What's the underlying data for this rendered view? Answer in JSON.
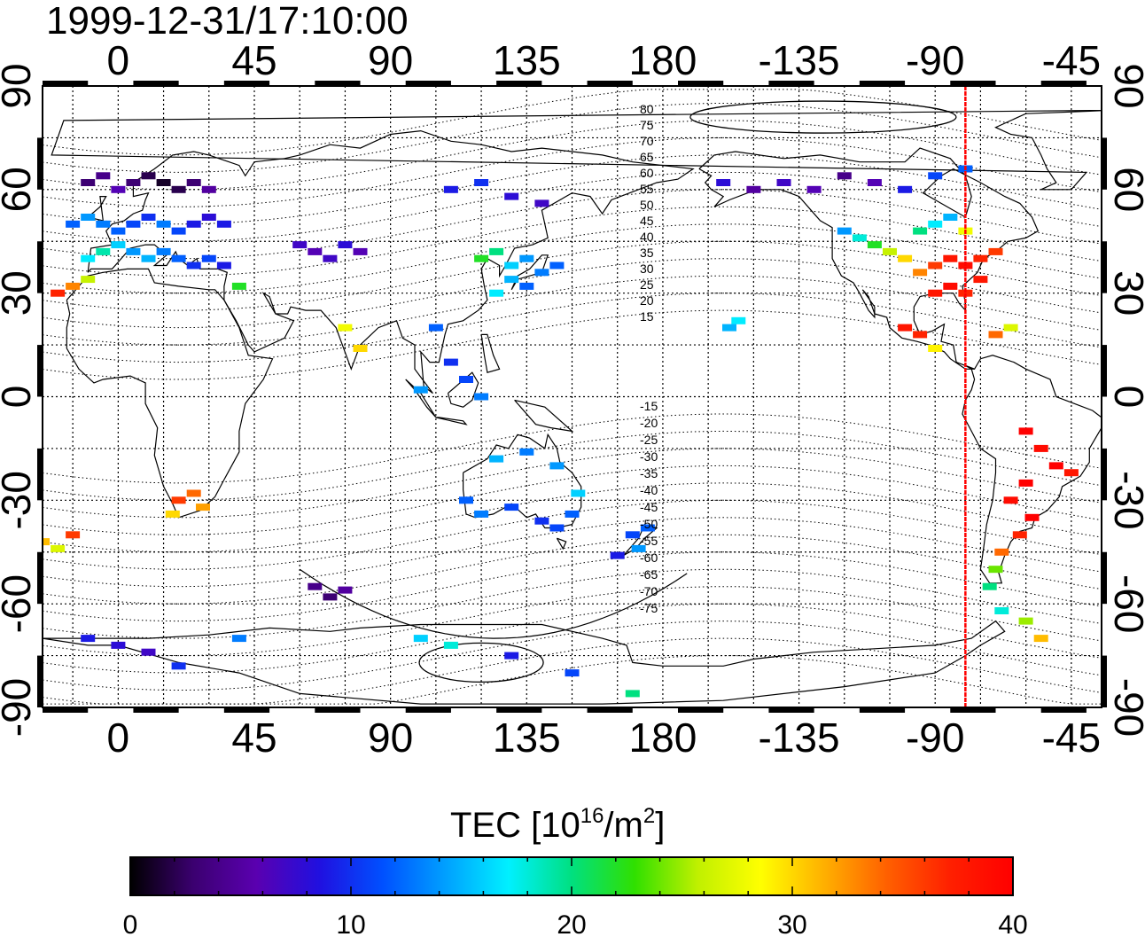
{
  "timestamp": "1999-12-31/17:10:00",
  "colorbar": {
    "title_main": "TEC  [10",
    "title_sup1": "16",
    "title_mid": "/m",
    "title_sup2": "2",
    "title_end": "]",
    "min": 0,
    "max": 40,
    "tick_labels": [
      "0",
      "10",
      "20",
      "30",
      "40"
    ],
    "colors": [
      "#000000",
      "#3b0070",
      "#5a00b0",
      "#2010e0",
      "#0050ff",
      "#00a0ff",
      "#00f0ff",
      "#00e080",
      "#30e000",
      "#c0f000",
      "#ffff00",
      "#ffb000",
      "#ff6000",
      "#ff2000",
      "#ff0000"
    ]
  },
  "axes": {
    "lon_ticks": [
      "0",
      "45",
      "90",
      "135",
      "180",
      "-135",
      "-90",
      "-45"
    ],
    "lat_ticks": [
      "90",
      "60",
      "30",
      "0",
      "-30",
      "-60",
      "-90"
    ]
  },
  "mlat_labels": [
    "80",
    "75",
    "70",
    "65",
    "60",
    "55",
    "50",
    "45",
    "40",
    "35",
    "30",
    "25",
    "20",
    "15",
    "-15",
    "-20",
    "-25",
    "-30",
    "-35",
    "-40",
    "-45",
    "-50",
    "-55",
    "-60",
    "-65",
    "-70",
    "-75"
  ],
  "chart_data": {
    "type": "heatmap",
    "title": "1999-12-31/17:10:00",
    "xlabel": "",
    "ylabel": "",
    "xlim": [
      -25,
      325
    ],
    "ylim": [
      -90,
      90
    ],
    "x_ticks": [
      "0",
      "45",
      "90",
      "135",
      "180",
      "-135",
      "-90",
      "-45"
    ],
    "y_ticks": [
      "90",
      "60",
      "30",
      "0",
      "-30",
      "-60",
      "-90"
    ],
    "colorbar_label": "TEC  [10^16/m^2]",
    "value_range": [
      0,
      40
    ],
    "grid": true,
    "marker_longitude": -80,
    "cells": [
      [
        -10,
        62,
        3
      ],
      [
        -5,
        64,
        4
      ],
      [
        0,
        60,
        6
      ],
      [
        5,
        62,
        3
      ],
      [
        10,
        64,
        2
      ],
      [
        15,
        62,
        1
      ],
      [
        20,
        60,
        2
      ],
      [
        25,
        62,
        3
      ],
      [
        30,
        60,
        5
      ],
      [
        -15,
        50,
        12
      ],
      [
        -10,
        52,
        14
      ],
      [
        -5,
        50,
        13
      ],
      [
        0,
        48,
        12
      ],
      [
        5,
        50,
        11
      ],
      [
        10,
        52,
        10
      ],
      [
        15,
        50,
        13
      ],
      [
        20,
        48,
        11
      ],
      [
        25,
        50,
        9
      ],
      [
        30,
        52,
        8
      ],
      [
        35,
        50,
        9
      ],
      [
        -10,
        40,
        17
      ],
      [
        -5,
        42,
        19
      ],
      [
        0,
        44,
        16
      ],
      [
        5,
        42,
        14
      ],
      [
        10,
        40,
        15
      ],
      [
        15,
        42,
        13
      ],
      [
        20,
        40,
        12
      ],
      [
        25,
        38,
        10
      ],
      [
        30,
        40,
        11
      ],
      [
        35,
        38,
        9
      ],
      [
        40,
        32,
        22
      ],
      [
        -20,
        30,
        37
      ],
      [
        -15,
        32,
        33
      ],
      [
        -10,
        34,
        26
      ],
      [
        60,
        44,
        7
      ],
      [
        65,
        42,
        6
      ],
      [
        70,
        40,
        7
      ],
      [
        75,
        44,
        8
      ],
      [
        80,
        42,
        6
      ],
      [
        120,
        40,
        22
      ],
      [
        125,
        42,
        20
      ],
      [
        130,
        38,
        16
      ],
      [
        135,
        40,
        14
      ],
      [
        140,
        36,
        13
      ],
      [
        145,
        38,
        12
      ],
      [
        130,
        34,
        15
      ],
      [
        135,
        32,
        12
      ],
      [
        125,
        30,
        17
      ],
      [
        110,
        60,
        9
      ],
      [
        120,
        62,
        10
      ],
      [
        130,
        58,
        8
      ],
      [
        140,
        56,
        7
      ],
      [
        105,
        20,
        12
      ],
      [
        110,
        10,
        10
      ],
      [
        115,
        5,
        11
      ],
      [
        120,
        0,
        13
      ],
      [
        100,
        2,
        14
      ],
      [
        80,
        14,
        30
      ],
      [
        75,
        20,
        28
      ],
      [
        -85,
        40,
        38
      ],
      [
        -80,
        38,
        39
      ],
      [
        -75,
        40,
        37
      ],
      [
        -90,
        38,
        36
      ],
      [
        -95,
        36,
        33
      ],
      [
        -100,
        40,
        30
      ],
      [
        -105,
        42,
        26
      ],
      [
        -110,
        44,
        22
      ],
      [
        -115,
        46,
        18
      ],
      [
        -120,
        48,
        14
      ],
      [
        -85,
        32,
        39
      ],
      [
        -90,
        30,
        38
      ],
      [
        -80,
        30,
        37
      ],
      [
        -75,
        34,
        38
      ],
      [
        -70,
        42,
        36
      ],
      [
        -95,
        48,
        20
      ],
      [
        -90,
        50,
        17
      ],
      [
        -85,
        52,
        15
      ],
      [
        -80,
        48,
        28
      ],
      [
        -100,
        20,
        38
      ],
      [
        -95,
        18,
        37
      ],
      [
        -90,
        14,
        29
      ],
      [
        -70,
        18,
        34
      ],
      [
        -65,
        20,
        27
      ],
      [
        -130,
        60,
        6
      ],
      [
        -140,
        62,
        7
      ],
      [
        -150,
        60,
        5
      ],
      [
        -160,
        62,
        8
      ],
      [
        -120,
        64,
        4
      ],
      [
        -110,
        62,
        6
      ],
      [
        -100,
        60,
        9
      ],
      [
        -90,
        64,
        11
      ],
      [
        -80,
        66,
        12
      ],
      [
        -155,
        22,
        17
      ],
      [
        -158,
        20,
        15
      ],
      [
        -60,
        -10,
        40
      ],
      [
        -55,
        -15,
        39
      ],
      [
        -50,
        -20,
        40
      ],
      [
        -45,
        -22,
        38
      ],
      [
        -60,
        -25,
        40
      ],
      [
        -65,
        -30,
        39
      ],
      [
        -58,
        -35,
        40
      ],
      [
        -62,
        -40,
        37
      ],
      [
        -68,
        -45,
        34
      ],
      [
        -70,
        -50,
        24
      ],
      [
        -72,
        -55,
        20
      ],
      [
        -68,
        -62,
        18
      ],
      [
        -60,
        -65,
        25
      ],
      [
        -55,
        -70,
        31
      ],
      [
        20,
        -30,
        36
      ],
      [
        25,
        -28,
        34
      ],
      [
        28,
        -32,
        32
      ],
      [
        18,
        -34,
        30
      ],
      [
        -25,
        -42,
        31
      ],
      [
        -20,
        -44,
        27
      ],
      [
        -15,
        -40,
        36
      ],
      [
        115,
        -30,
        12
      ],
      [
        120,
        -34,
        13
      ],
      [
        130,
        -32,
        11
      ],
      [
        140,
        -36,
        10
      ],
      [
        145,
        -38,
        11
      ],
      [
        150,
        -34,
        12
      ],
      [
        152,
        -28,
        16
      ],
      [
        145,
        -20,
        14
      ],
      [
        135,
        -16,
        13
      ],
      [
        125,
        -18,
        15
      ],
      [
        170,
        -40,
        11
      ],
      [
        172,
        -44,
        14
      ],
      [
        175,
        -38,
        12
      ],
      [
        165,
        -46,
        9
      ],
      [
        65,
        -55,
        4
      ],
      [
        70,
        -58,
        3
      ],
      [
        75,
        -56,
        5
      ],
      [
        0,
        -72,
        8
      ],
      [
        10,
        -74,
        7
      ],
      [
        -10,
        -70,
        9
      ],
      [
        40,
        -70,
        13
      ],
      [
        20,
        -78,
        10
      ],
      [
        100,
        -70,
        16
      ],
      [
        110,
        -72,
        18
      ],
      [
        130,
        -75,
        9
      ],
      [
        150,
        -80,
        11
      ],
      [
        170,
        -86,
        20
      ]
    ]
  }
}
